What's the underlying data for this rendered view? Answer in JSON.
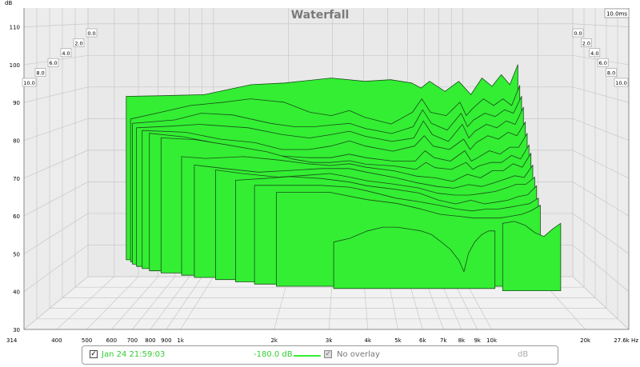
{
  "chart_data": {
    "type": "area",
    "title": "Waterfall",
    "time_label": "10.0ms",
    "y_unit": "dB",
    "x_unit": "Hz",
    "x_scale": "log",
    "xlim": [
      314,
      27600
    ],
    "ylim": [
      30,
      115
    ],
    "y_ticks": [
      30,
      40,
      50,
      60,
      70,
      80,
      90,
      100,
      110
    ],
    "x_ticks": [
      {
        "v": 314,
        "label": "314"
      },
      {
        "v": 400,
        "label": "400"
      },
      {
        "v": 500,
        "label": "500"
      },
      {
        "v": 600,
        "label": "600"
      },
      {
        "v": 700,
        "label": "700"
      },
      {
        "v": 800,
        "label": "800"
      },
      {
        "v": 900,
        "label": "900"
      },
      {
        "v": 1000,
        "label": "1k"
      },
      {
        "v": 2000,
        "label": "2k"
      },
      {
        "v": 3000,
        "label": "3k"
      },
      {
        "v": 4000,
        "label": "4k"
      },
      {
        "v": 5000,
        "label": "5k"
      },
      {
        "v": 6000,
        "label": "6k"
      },
      {
        "v": 7000,
        "label": "7k"
      },
      {
        "v": 8000,
        "label": "8k"
      },
      {
        "v": 9000,
        "label": "9k"
      },
      {
        "v": 10000,
        "label": "10k"
      },
      {
        "v": 20000,
        "label": "20k"
      },
      {
        "v": 27600,
        "label": "27.6k Hz"
      }
    ],
    "depth_labels": [
      "0.0",
      "2.0",
      "4.0",
      "6.0",
      "8.0",
      "10.0"
    ],
    "fill_color": "#33ee33",
    "slices": [
      {
        "start_hz": 510,
        "points": [
          [
            510,
            88.5
          ],
          [
            700,
            88.7
          ],
          [
            1000,
            89
          ],
          [
            1500,
            92
          ],
          [
            2000,
            92.5
          ],
          [
            3000,
            94
          ],
          [
            4000,
            93
          ],
          [
            5000,
            93.5
          ],
          [
            6000,
            92.5
          ],
          [
            6500,
            91
          ],
          [
            7000,
            93
          ],
          [
            8000,
            90
          ],
          [
            9000,
            93
          ],
          [
            10000,
            89
          ],
          [
            11000,
            94
          ],
          [
            12000,
            91.5
          ],
          [
            13000,
            95
          ],
          [
            14000,
            92
          ],
          [
            15000,
            98
          ]
        ]
      },
      {
        "start_hz": 540,
        "points": [
          [
            540,
            82
          ],
          [
            700,
            84
          ],
          [
            900,
            86
          ],
          [
            1200,
            87
          ],
          [
            1500,
            88
          ],
          [
            2000,
            87
          ],
          [
            2500,
            84
          ],
          [
            3000,
            83
          ],
          [
            3500,
            84.5
          ],
          [
            4000,
            82.5
          ],
          [
            5000,
            80.5
          ],
          [
            6000,
            84
          ],
          [
            6500,
            88
          ],
          [
            7000,
            84
          ],
          [
            8000,
            83
          ],
          [
            9000,
            87
          ],
          [
            9500,
            83
          ],
          [
            10000,
            85
          ],
          [
            11000,
            88
          ],
          [
            12000,
            86
          ],
          [
            13000,
            88
          ],
          [
            14000,
            86
          ],
          [
            15000,
            92
          ]
        ]
      },
      {
        "start_hz": 560,
        "points": [
          [
            560,
            81
          ],
          [
            800,
            82
          ],
          [
            1000,
            84
          ],
          [
            1300,
            83.5
          ],
          [
            1800,
            81
          ],
          [
            2200,
            80
          ],
          [
            2600,
            80
          ],
          [
            3000,
            80.5
          ],
          [
            3500,
            81
          ],
          [
            4000,
            79.5
          ],
          [
            5000,
            78
          ],
          [
            6000,
            80
          ],
          [
            6500,
            85
          ],
          [
            7000,
            81
          ],
          [
            8000,
            79
          ],
          [
            9000,
            84
          ],
          [
            9500,
            80
          ],
          [
            10000,
            82
          ],
          [
            11000,
            84
          ],
          [
            12000,
            83
          ],
          [
            13000,
            85
          ],
          [
            14000,
            84
          ],
          [
            15000,
            89
          ]
        ]
      },
      {
        "start_hz": 590,
        "points": [
          [
            590,
            80
          ],
          [
            800,
            80.5
          ],
          [
            1000,
            81
          ],
          [
            1500,
            80
          ],
          [
            2000,
            78
          ],
          [
            2500,
            77
          ],
          [
            3000,
            78
          ],
          [
            3500,
            79
          ],
          [
            4000,
            77.5
          ],
          [
            5000,
            76
          ],
          [
            6000,
            77
          ],
          [
            6500,
            82
          ],
          [
            7000,
            78
          ],
          [
            8000,
            76
          ],
          [
            9000,
            81
          ],
          [
            9500,
            77
          ],
          [
            10000,
            79
          ],
          [
            11000,
            81
          ],
          [
            12000,
            80
          ],
          [
            13000,
            82
          ],
          [
            14000,
            81
          ],
          [
            15000,
            86
          ]
        ]
      },
      {
        "start_hz": 630,
        "points": [
          [
            630,
            79.5
          ],
          [
            900,
            79
          ],
          [
            1200,
            77
          ],
          [
            1600,
            76
          ],
          [
            2000,
            74
          ],
          [
            2500,
            74
          ],
          [
            3000,
            75
          ],
          [
            3500,
            76.5
          ],
          [
            4000,
            75
          ],
          [
            5000,
            73.5
          ],
          [
            6000,
            75
          ],
          [
            6500,
            78
          ],
          [
            7000,
            75
          ],
          [
            8000,
            74
          ],
          [
            9000,
            77
          ],
          [
            9500,
            74
          ],
          [
            10000,
            76
          ],
          [
            11000,
            78
          ],
          [
            12000,
            77
          ],
          [
            13000,
            79
          ],
          [
            14000,
            78
          ],
          [
            15000,
            82
          ]
        ]
      },
      {
        "start_hz": 680,
        "points": [
          [
            680,
            79
          ],
          [
            900,
            78
          ],
          [
            1200,
            76
          ],
          [
            1600,
            74
          ],
          [
            2000,
            72.5
          ],
          [
            2500,
            72
          ],
          [
            3000,
            72
          ],
          [
            3500,
            73
          ],
          [
            4000,
            72
          ],
          [
            5000,
            71
          ],
          [
            6000,
            71
          ],
          [
            6500,
            74
          ],
          [
            7000,
            72
          ],
          [
            8000,
            71
          ],
          [
            9000,
            74
          ],
          [
            9500,
            71
          ],
          [
            10000,
            72
          ],
          [
            11000,
            74
          ],
          [
            12000,
            73
          ],
          [
            13000,
            75
          ],
          [
            14000,
            75
          ],
          [
            15000,
            79
          ]
        ]
      },
      {
        "start_hz": 760,
        "points": [
          [
            760,
            78
          ],
          [
            1000,
            77.5
          ],
          [
            1300,
            76
          ],
          [
            1800,
            74
          ],
          [
            2200,
            72
          ],
          [
            2600,
            71
          ],
          [
            3000,
            71
          ],
          [
            3500,
            71.5
          ],
          [
            4000,
            70.5
          ],
          [
            5000,
            70
          ],
          [
            6000,
            69
          ],
          [
            6500,
            71
          ],
          [
            7000,
            69.5
          ],
          [
            8000,
            69
          ],
          [
            9000,
            71
          ],
          [
            9500,
            69
          ],
          [
            10000,
            70
          ],
          [
            11000,
            71
          ],
          [
            12000,
            71
          ],
          [
            13000,
            73
          ],
          [
            14000,
            72
          ],
          [
            15000,
            76
          ]
        ]
      },
      {
        "start_hz": 910,
        "points": [
          [
            910,
            73
          ],
          [
            1100,
            72.5
          ],
          [
            1500,
            73
          ],
          [
            2000,
            72
          ],
          [
            2500,
            71
          ],
          [
            3000,
            70.5
          ],
          [
            3500,
            71
          ],
          [
            4000,
            70
          ],
          [
            5000,
            69
          ],
          [
            6000,
            67.5
          ],
          [
            7000,
            67
          ],
          [
            8000,
            66
          ],
          [
            9000,
            68
          ],
          [
            10000,
            67
          ],
          [
            11000,
            69
          ],
          [
            12000,
            69
          ],
          [
            13000,
            71
          ],
          [
            14000,
            70
          ],
          [
            15000,
            74
          ]
        ]
      },
      {
        "start_hz": 1020,
        "points": [
          [
            1020,
            71
          ],
          [
            1300,
            70
          ],
          [
            1700,
            69
          ],
          [
            2200,
            69.5
          ],
          [
            2800,
            70
          ],
          [
            3500,
            70
          ],
          [
            4000,
            69
          ],
          [
            5000,
            67.5
          ],
          [
            6000,
            66
          ],
          [
            7000,
            65
          ],
          [
            8000,
            64.5
          ],
          [
            9000,
            65.5
          ],
          [
            10000,
            65
          ],
          [
            11000,
            66
          ],
          [
            12000,
            67
          ],
          [
            13000,
            68
          ],
          [
            14000,
            67.5
          ],
          [
            15000,
            71
          ]
        ]
      },
      {
        "start_hz": 1220,
        "points": [
          [
            1220,
            70
          ],
          [
            1500,
            69
          ],
          [
            2000,
            68
          ],
          [
            2500,
            68.5
          ],
          [
            3000,
            69
          ],
          [
            3500,
            68
          ],
          [
            4000,
            67
          ],
          [
            5000,
            66
          ],
          [
            6000,
            65
          ],
          [
            7000,
            63.5
          ],
          [
            8000,
            63
          ],
          [
            9000,
            63
          ],
          [
            10000,
            63.5
          ],
          [
            11000,
            64
          ],
          [
            12000,
            65
          ],
          [
            13000,
            66
          ],
          [
            14000,
            66
          ],
          [
            15000,
            68
          ]
        ]
      },
      {
        "start_hz": 1440,
        "points": [
          [
            1440,
            67.5
          ],
          [
            1800,
            68
          ],
          [
            2200,
            68.5
          ],
          [
            2800,
            68
          ],
          [
            3500,
            67
          ],
          [
            4000,
            66
          ],
          [
            5000,
            65
          ],
          [
            6000,
            64
          ],
          [
            7000,
            62
          ],
          [
            8000,
            61
          ],
          [
            9000,
            62
          ],
          [
            10000,
            61
          ],
          [
            11000,
            61.5
          ],
          [
            12000,
            62
          ],
          [
            13000,
            63
          ],
          [
            14000,
            63.5
          ],
          [
            15000,
            66
          ]
        ]
      },
      {
        "start_hz": 1680,
        "points": [
          [
            1680,
            66.5
          ],
          [
            2200,
            66.5
          ],
          [
            2800,
            66.5
          ],
          [
            3500,
            66
          ],
          [
            4000,
            65
          ],
          [
            5000,
            63
          ],
          [
            6000,
            62
          ],
          [
            7000,
            61
          ],
          [
            8000,
            60
          ],
          [
            9000,
            59.5
          ],
          [
            10000,
            60
          ],
          [
            11000,
            60
          ],
          [
            12000,
            60.5
          ],
          [
            13000,
            61
          ],
          [
            14000,
            61.5
          ],
          [
            15000,
            63
          ]
        ]
      },
      {
        "start_hz": 2000,
        "points": [
          [
            2000,
            65
          ],
          [
            3000,
            65
          ],
          [
            4000,
            63
          ],
          [
            5000,
            62
          ],
          [
            6000,
            60.5
          ],
          [
            7000,
            59
          ],
          [
            8000,
            58.5
          ],
          [
            9000,
            58
          ],
          [
            10000,
            58
          ],
          [
            11000,
            58
          ],
          [
            12000,
            58.5
          ],
          [
            13000,
            59
          ],
          [
            14000,
            60
          ],
          [
            15000,
            61.5
          ]
        ]
      },
      {
        "start_hz": 3100,
        "points": [
          [
            3100,
            52
          ],
          [
            3500,
            53
          ],
          [
            4000,
            55
          ],
          [
            4500,
            56
          ],
          [
            5000,
            56
          ],
          [
            5500,
            55.5
          ],
          [
            6000,
            55
          ],
          [
            6500,
            54
          ],
          [
            7000,
            52
          ],
          [
            7500,
            50
          ],
          [
            8000,
            47
          ],
          [
            8300,
            44
          ],
          [
            8600,
            49
          ],
          [
            9000,
            52
          ],
          [
            9500,
            54
          ],
          [
            10000,
            55
          ],
          [
            10500,
            55
          ]
        ]
      },
      {
        "start_hz": 11000,
        "points": [
          [
            11000,
            57.5
          ],
          [
            12000,
            58
          ],
          [
            13000,
            57
          ],
          [
            14000,
            55
          ],
          [
            15000,
            54
          ],
          [
            16000,
            56
          ],
          [
            17000,
            57.5
          ]
        ]
      }
    ]
  },
  "legend": {
    "checked_mark": "✓",
    "date_label": "Jan 24 21:59:03",
    "value_label": "-180.0 dB",
    "overlay_label": "No overlay",
    "unit_label": "dB",
    "line_color": "#33ee33"
  }
}
